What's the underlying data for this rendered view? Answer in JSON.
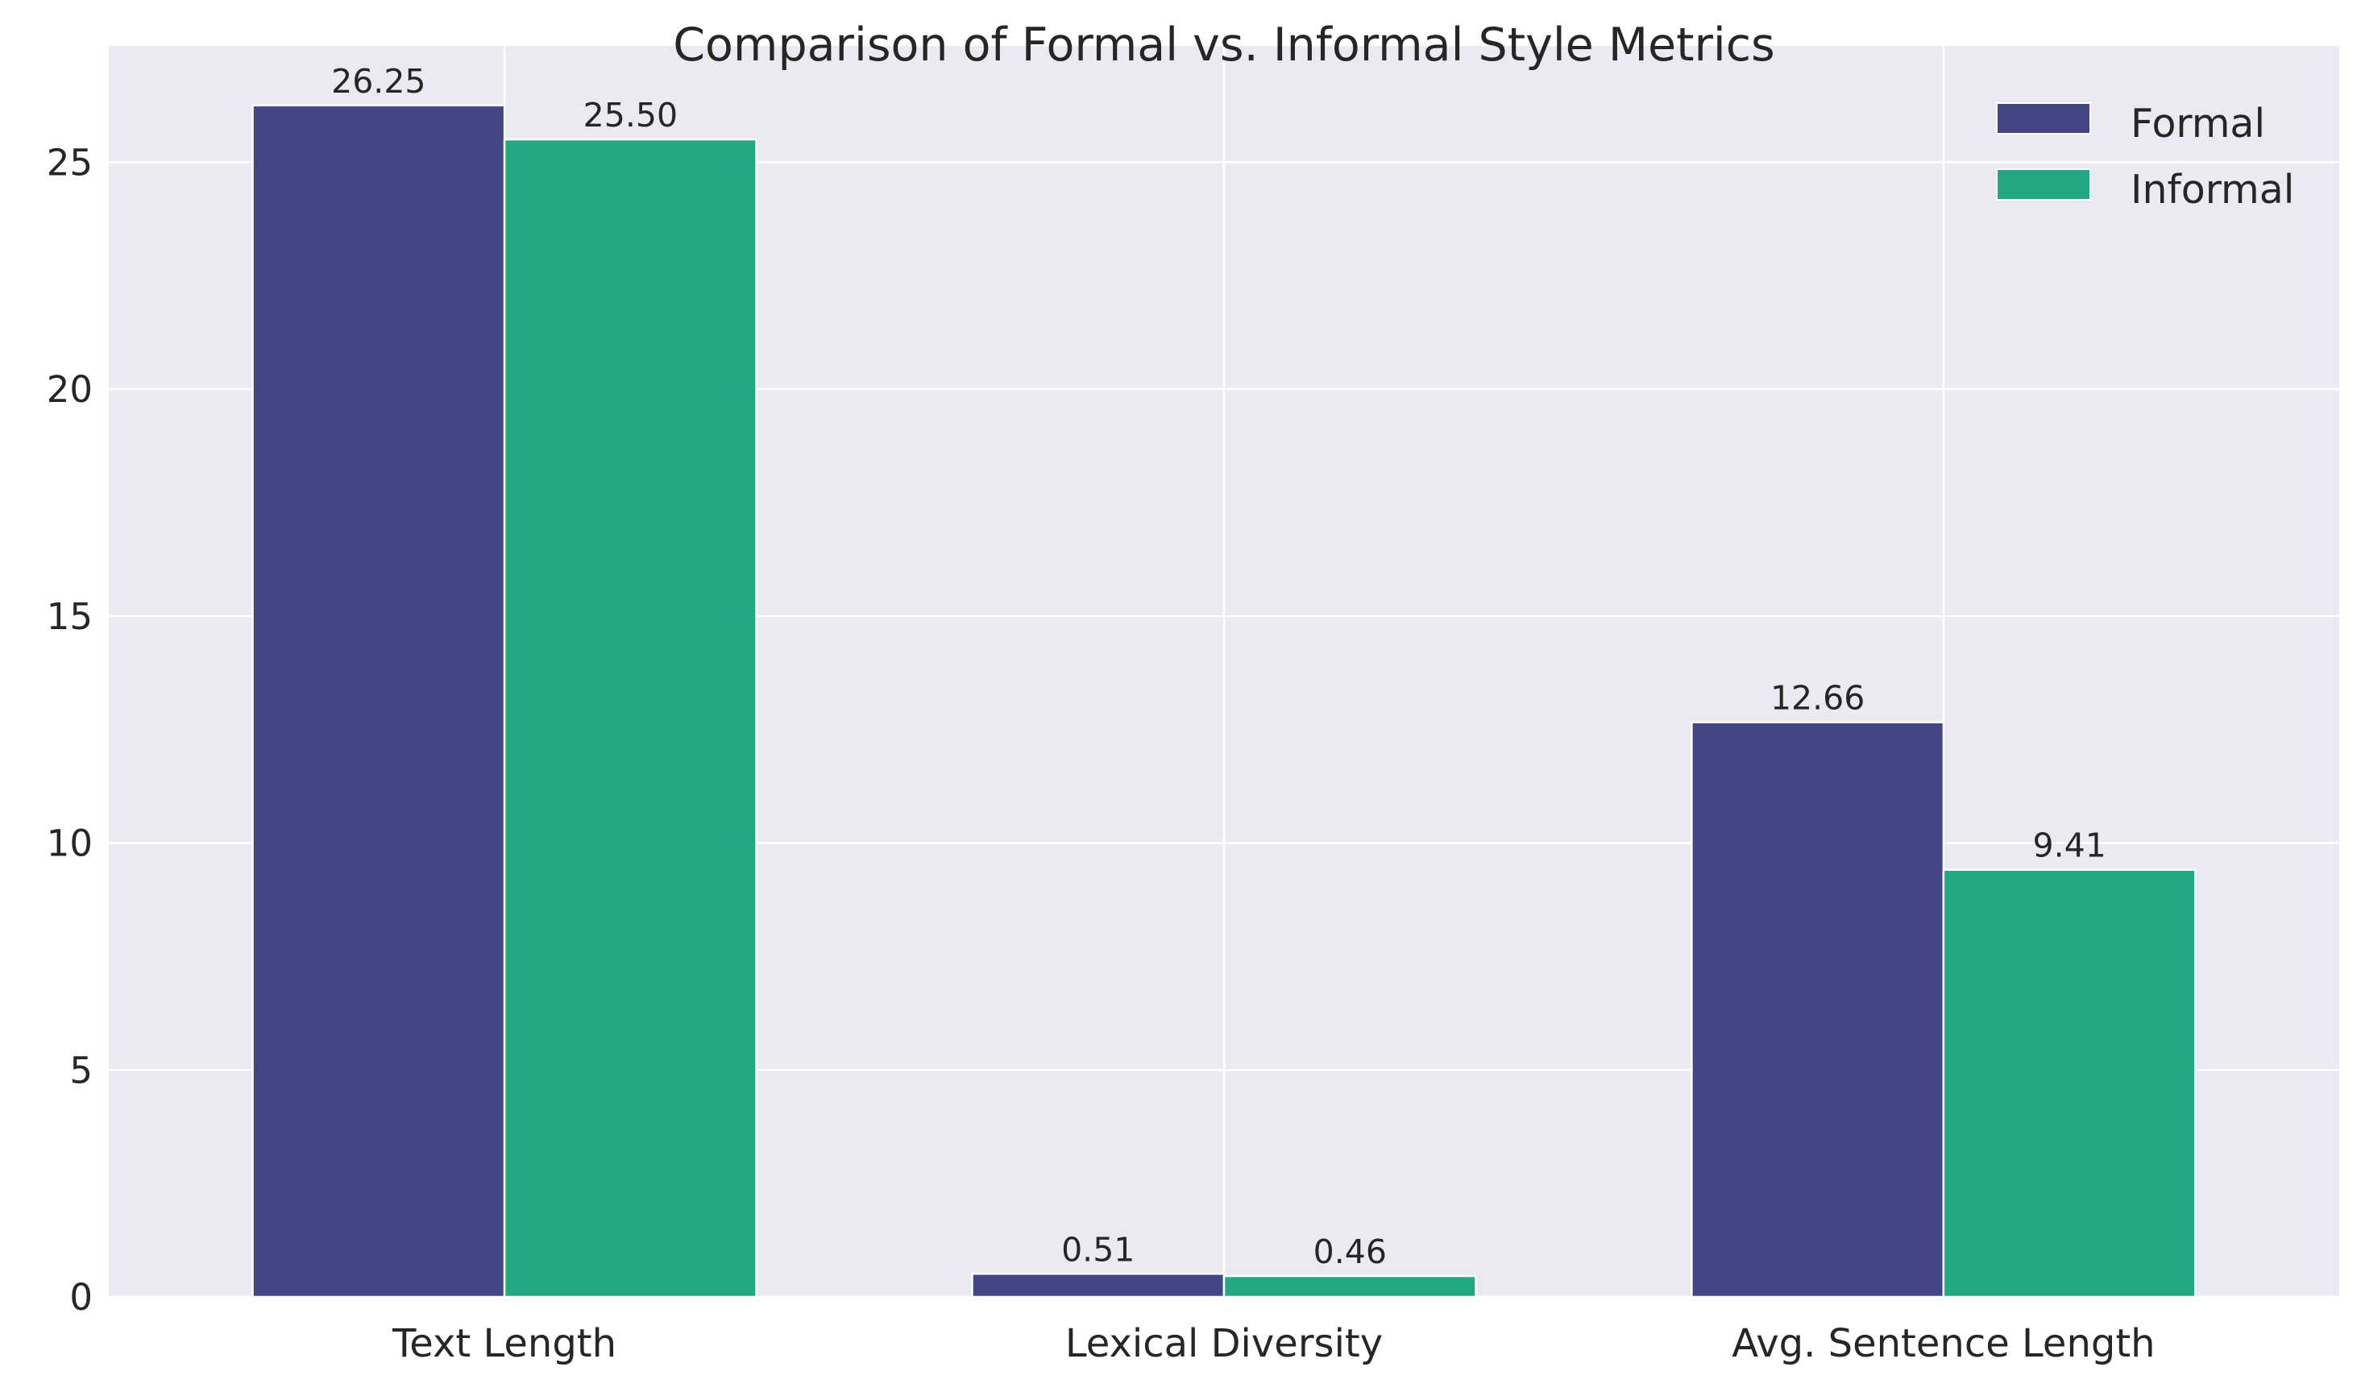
{
  "chart_data": {
    "type": "bar",
    "title": "Comparison of Formal vs. Informal Style Metrics",
    "xlabel": "",
    "ylabel": "",
    "categories": [
      "Text Length",
      "Lexical Diversity",
      "Avg. Sentence Length"
    ],
    "series": [
      {
        "name": "Formal",
        "color": "#424685",
        "values": [
          26.25,
          0.51,
          12.66
        ],
        "labels": [
          "26.25",
          "0.51",
          "12.66"
        ]
      },
      {
        "name": "Informal",
        "color": "#23a886",
        "values": [
          25.5,
          0.46,
          9.41
        ],
        "labels": [
          "25.50",
          "0.46",
          "9.41"
        ]
      }
    ],
    "ylim": [
      0,
      27.56
    ],
    "yticks": [
      0,
      5,
      10,
      15,
      20,
      25
    ],
    "ytick_labels": [
      "0",
      "5",
      "10",
      "15",
      "20",
      "25"
    ],
    "grid": true,
    "legend_position": "top-right",
    "background_color": "#eaeaf2",
    "grid_color": "#ffffff"
  }
}
